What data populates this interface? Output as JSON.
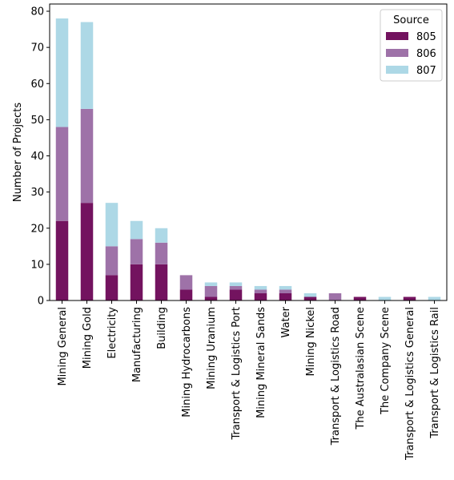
{
  "chart_data": {
    "type": "bar",
    "stacked": true,
    "categories": [
      "Mining General",
      "Mining Gold",
      "Electricity",
      "Manufacturing",
      "Building",
      "Mining Hydrocarbons",
      "Mining Uranium",
      "Transport & Logistics Port",
      "Mining Mineral Sands",
      "Water",
      "Mining Nickel",
      "Transport & Logistics Road",
      "The Australasian Scene",
      "The Company Scene",
      "Transport & Logistics General",
      "Transport & Logistics Rail"
    ],
    "series": [
      {
        "name": "805",
        "color": "#73135f",
        "values": [
          22,
          27,
          7,
          10,
          10,
          3,
          1,
          3,
          2,
          2,
          1,
          0,
          1,
          0,
          1,
          0
        ]
      },
      {
        "name": "806",
        "color": "#9e72a8",
        "values": [
          26,
          26,
          8,
          7,
          6,
          4,
          3,
          1,
          1,
          1,
          0,
          2,
          0,
          0,
          0,
          0
        ]
      },
      {
        "name": "807",
        "color": "#add8e6",
        "values": [
          30,
          24,
          12,
          5,
          4,
          0,
          1,
          1,
          1,
          1,
          1,
          0,
          0,
          1,
          0,
          1
        ]
      }
    ],
    "title": "",
    "xlabel": "",
    "ylabel": "Number of Projects",
    "ylim": [
      0,
      82
    ],
    "yticks": [
      0,
      10,
      20,
      30,
      40,
      50,
      60,
      70,
      80
    ],
    "legend": {
      "title": "Source",
      "placement": "top-right"
    },
    "grid": false
  }
}
